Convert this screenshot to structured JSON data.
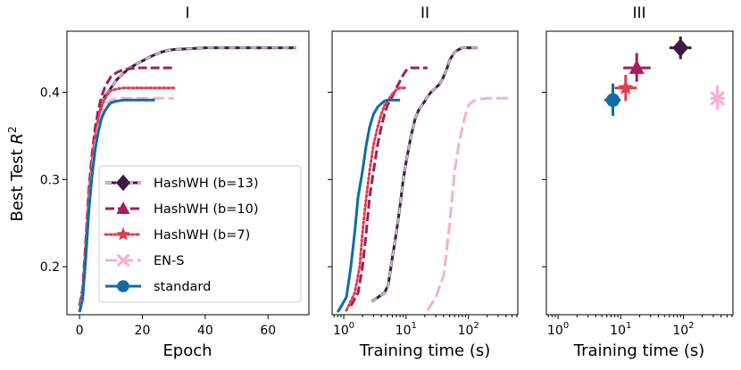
{
  "chart_data": {
    "type": "line",
    "ylabel": "Best Test R²",
    "ylabel_text": "Best Test ",
    "ylabel_var": "R",
    "ylabel_sup": "2",
    "ylim": [
      0.145,
      0.47
    ],
    "yticks": [
      0.2,
      0.3,
      0.4
    ],
    "ytick_labels": [
      "0.2",
      "0.3",
      "0.4"
    ],
    "legend": {
      "location": "lower-right of panel I",
      "entries": [
        "HashWH (b=13)",
        "HashWH (b=10)",
        "HashWH (b=7)",
        "EN-S",
        "standard"
      ]
    },
    "series_styles": [
      {
        "name": "HashWH (b=13)",
        "color": "#3b1a45",
        "marker": "diamond",
        "dash": "dash-dot",
        "secondary": "#c8bcc8"
      },
      {
        "name": "HashWH (b=10)",
        "color": "#a51d5d",
        "marker": "triangle",
        "dash": "dashed"
      },
      {
        "name": "HashWH (b=7)",
        "color": "#e33b4b",
        "marker": "star",
        "dash": "dotted"
      },
      {
        "name": "EN-S",
        "color": "#f5aed3",
        "marker": "x",
        "dash": "dashed-long"
      },
      {
        "name": "standard",
        "color": "#0f6ca7",
        "marker": "circle",
        "dash": "solid"
      }
    ],
    "panels": [
      {
        "title": "I",
        "xlabel": "Epoch",
        "xscale": "linear",
        "xlim": [
          -4,
          73
        ],
        "xticks": [
          0,
          20,
          40,
          60
        ],
        "xtick_labels": [
          "0",
          "20",
          "40",
          "60"
        ],
        "series": [
          {
            "name": "HashWH (b=13)",
            "x": [
              0,
              1,
              2,
              3,
              4,
              5,
              6,
              7,
              8,
              10,
              12,
              14,
              16,
              18,
              20,
              22,
              24,
              26,
              28,
              30,
              35,
              40,
              45,
              50,
              55,
              60,
              65,
              69
            ],
            "y": [
              0.155,
              0.17,
              0.22,
              0.28,
              0.32,
              0.35,
              0.37,
              0.385,
              0.395,
              0.405,
              0.415,
              0.422,
              0.428,
              0.432,
              0.436,
              0.44,
              0.443,
              0.446,
              0.448,
              0.449,
              0.45,
              0.451,
              0.451,
              0.451,
              0.451,
              0.451,
              0.451,
              0.451
            ]
          },
          {
            "name": "HashWH (b=10)",
            "x": [
              0,
              1,
              2,
              3,
              4,
              5,
              6,
              7,
              8,
              9,
              10,
              12,
              14,
              16,
              18,
              20,
              22,
              25,
              30
            ],
            "y": [
              0.155,
              0.175,
              0.23,
              0.29,
              0.33,
              0.36,
              0.38,
              0.395,
              0.405,
              0.412,
              0.418,
              0.423,
              0.426,
              0.427,
              0.428,
              0.428,
              0.428,
              0.428,
              0.428
            ]
          },
          {
            "name": "HashWH (b=7)",
            "x": [
              0,
              1,
              2,
              3,
              4,
              5,
              6,
              7,
              8,
              9,
              10,
              12,
              14,
              16,
              18,
              20,
              22,
              25,
              30
            ],
            "y": [
              0.15,
              0.17,
              0.22,
              0.28,
              0.32,
              0.35,
              0.37,
              0.383,
              0.392,
              0.398,
              0.402,
              0.404,
              0.405,
              0.405,
              0.405,
              0.405,
              0.405,
              0.405,
              0.405
            ]
          },
          {
            "name": "EN-S",
            "x": [
              0,
              1,
              2,
              3,
              4,
              5,
              6,
              7,
              8,
              9,
              10,
              11,
              12,
              14,
              16,
              18,
              20,
              22,
              25,
              30
            ],
            "y": [
              0.15,
              0.165,
              0.21,
              0.27,
              0.31,
              0.34,
              0.36,
              0.375,
              0.383,
              0.388,
              0.391,
              0.392,
              0.393,
              0.393,
              0.393,
              0.393,
              0.393,
              0.393,
              0.393,
              0.393
            ]
          },
          {
            "name": "standard",
            "x": [
              0,
              1,
              2,
              3,
              4,
              5,
              6,
              7,
              8,
              9,
              10,
              12,
              14,
              16,
              18,
              20,
              22,
              24
            ],
            "y": [
              0.148,
              0.163,
              0.21,
              0.265,
              0.305,
              0.335,
              0.355,
              0.37,
              0.378,
              0.384,
              0.388,
              0.39,
              0.391,
              0.391,
              0.391,
              0.391,
              0.391,
              0.391
            ]
          }
        ]
      },
      {
        "title": "II",
        "xlabel": "Training time (s)",
        "xscale": "log",
        "xlim": [
          0.65,
          620
        ],
        "xticks": [
          1,
          10,
          100
        ],
        "xtick_base": "10",
        "xtick_exponents": [
          "0",
          "1",
          "2"
        ],
        "series": [
          {
            "name": "HashWH (b=13)",
            "x": [
              2.8,
              4.5,
              5.2,
              6,
              7,
              8,
              9,
              10,
              12,
              14,
              16,
              18,
              20,
              22,
              25,
              30,
              35,
              40,
              45,
              50,
              60,
              70,
              80,
              90,
              100,
              120,
              140
            ],
            "y": [
              0.16,
              0.17,
              0.18,
              0.21,
              0.24,
              0.27,
              0.3,
              0.32,
              0.35,
              0.37,
              0.38,
              0.385,
              0.39,
              0.395,
              0.4,
              0.405,
              0.41,
              0.418,
              0.427,
              0.437,
              0.446,
              0.449,
              0.451,
              0.451,
              0.451,
              0.451,
              0.451
            ]
          },
          {
            "name": "HashWH (b=10)",
            "x": [
              1.3,
              1.7,
              2,
              2.3,
              2.6,
              3,
              3.5,
              4,
              4.5,
              5,
              6,
              7,
              8,
              9,
              10,
              12,
              15,
              18,
              22
            ],
            "y": [
              0.155,
              0.17,
              0.2,
              0.24,
              0.28,
              0.31,
              0.34,
              0.36,
              0.375,
              0.385,
              0.395,
              0.405,
              0.413,
              0.42,
              0.425,
              0.428,
              0.428,
              0.428,
              0.428
            ]
          },
          {
            "name": "HashWH (b=7)",
            "x": [
              1.1,
              1.5,
              1.8,
              2,
              2.3,
              2.6,
              3,
              3.5,
              4,
              4.5,
              5,
              6,
              7,
              8,
              10
            ],
            "y": [
              0.15,
              0.17,
              0.2,
              0.24,
              0.28,
              0.31,
              0.34,
              0.36,
              0.375,
              0.385,
              0.39,
              0.398,
              0.403,
              0.405,
              0.405
            ]
          },
          {
            "name": "EN-S",
            "x": [
              22,
              30,
              40,
              45,
              50,
              55,
              60,
              70,
              80,
              90,
              100,
              120,
              150,
              200,
              300,
              430
            ],
            "y": [
              0.15,
              0.165,
              0.19,
              0.22,
              0.25,
              0.28,
              0.31,
              0.34,
              0.36,
              0.375,
              0.385,
              0.39,
              0.392,
              0.393,
              0.393,
              0.393
            ]
          },
          {
            "name": "standard",
            "x": [
              0.8,
              1.1,
              1.3,
              1.5,
              1.7,
              2,
              2.3,
              2.6,
              3,
              3.5,
              4,
              4.5,
              5,
              6,
              7,
              8
            ],
            "y": [
              0.148,
              0.165,
              0.2,
              0.24,
              0.28,
              0.31,
              0.34,
              0.36,
              0.375,
              0.383,
              0.387,
              0.39,
              0.391,
              0.391,
              0.391,
              0.391
            ]
          }
        ]
      },
      {
        "title": "III",
        "xlabel": "Training time (s)",
        "xscale": "log",
        "xlim": [
          0.65,
          620
        ],
        "xticks": [
          1,
          10,
          100
        ],
        "xtick_base": "10",
        "xtick_exponents": [
          "0",
          "1",
          "2"
        ],
        "points": [
          {
            "name": "HashWH (b=13)",
            "x": 90,
            "y": 0.451,
            "xerr": [
              60,
              135
            ],
            "yerr": [
              0.438,
              0.464
            ]
          },
          {
            "name": "HashWH (b=10)",
            "x": 18,
            "y": 0.428,
            "xerr": [
              11,
              30
            ],
            "yerr": [
              0.412,
              0.445
            ]
          },
          {
            "name": "HashWH (b=7)",
            "x": 12,
            "y": 0.405,
            "xerr": [
              8,
              18
            ],
            "yerr": [
              0.39,
              0.42
            ]
          },
          {
            "name": "EN-S",
            "x": 350,
            "y": 0.393,
            "xerr": [
              270,
              460
            ],
            "yerr": [
              0.38,
              0.408
            ]
          },
          {
            "name": "standard",
            "x": 7.5,
            "y": 0.391,
            "xerr": [
              5.5,
              10
            ],
            "yerr": [
              0.373,
              0.41
            ]
          }
        ]
      }
    ]
  }
}
